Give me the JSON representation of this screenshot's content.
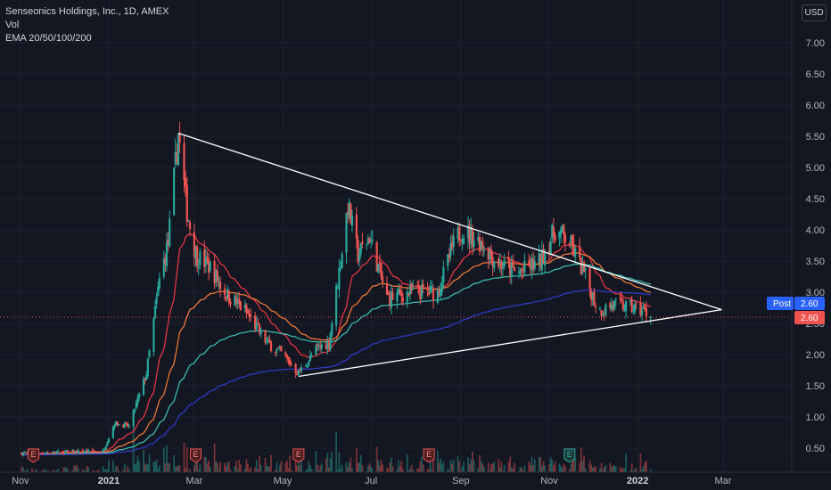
{
  "legend": {
    "symbol_line": "Senseonics Holdings, Inc., 1D, AMEX",
    "volume_label": "Vol",
    "ema_label": "EMA 20/50/100/200"
  },
  "currency": "USD",
  "price_tags": {
    "post_label": "Post",
    "post_value": "2.60",
    "last_value": "2.60"
  },
  "colors": {
    "background": "#131722",
    "up": "#26a69a",
    "down": "#ef5350",
    "ema20": "#f23645",
    "ema50": "#ff7d38",
    "ema100": "#3dc4b8",
    "ema200": "#2e3ccf",
    "trendline": "#ffffff",
    "post_tag": "#2962ff",
    "last_tag": "#ef5350"
  },
  "chart_data": {
    "type": "candlestick",
    "title": "Senseonics Holdings, Inc., 1D, AMEX",
    "ylim": [
      0.25,
      7.2
    ],
    "y_ticks": [
      "7.00",
      "6.50",
      "6.00",
      "5.50",
      "5.00",
      "4.50",
      "4.00",
      "3.50",
      "3.00",
      "2.50",
      "2.00",
      "1.50",
      "1.00",
      "0.50"
    ],
    "x_ticks": [
      {
        "label": "Nov",
        "bold": false
      },
      {
        "label": "2021",
        "bold": true
      },
      {
        "label": "Mar",
        "bold": false
      },
      {
        "label": "May",
        "bold": false
      },
      {
        "label": "Jul",
        "bold": false
      },
      {
        "label": "Sep",
        "bold": false
      },
      {
        "label": "Nov",
        "bold": false
      },
      {
        "label": "2022",
        "bold": true
      },
      {
        "label": "Mar",
        "bold": false
      }
    ],
    "price_anchors": [
      [
        "2020-11-01",
        0.42
      ],
      [
        "2020-12-28",
        0.45
      ],
      [
        "2021-01-05",
        0.9
      ],
      [
        "2021-01-15",
        0.85
      ],
      [
        "2021-01-27",
        1.7
      ],
      [
        "2021-02-05",
        3.2
      ],
      [
        "2021-02-11",
        3.8
      ],
      [
        "2021-02-15",
        4.8
      ],
      [
        "2021-02-18",
        5.55
      ],
      [
        "2021-02-24",
        4.3
      ],
      [
        "2021-03-02",
        3.6
      ],
      [
        "2021-03-12",
        3.4
      ],
      [
        "2021-03-22",
        3.0
      ],
      [
        "2021-04-05",
        2.7
      ],
      [
        "2021-04-20",
        2.2
      ],
      [
        "2021-05-01",
        2.0
      ],
      [
        "2021-05-12",
        1.7
      ],
      [
        "2021-05-25",
        2.1
      ],
      [
        "2021-06-02",
        2.2
      ],
      [
        "2021-06-10",
        3.5
      ],
      [
        "2021-06-15",
        4.4
      ],
      [
        "2021-06-22",
        3.6
      ],
      [
        "2021-06-30",
        3.9
      ],
      [
        "2021-07-12",
        2.9
      ],
      [
        "2021-07-28",
        3.0
      ],
      [
        "2021-08-16",
        3.0
      ],
      [
        "2021-08-26",
        3.7
      ],
      [
        "2021-09-01",
        4.0
      ],
      [
        "2021-09-15",
        3.8
      ],
      [
        "2021-09-25",
        3.5
      ],
      [
        "2021-10-10",
        3.3
      ],
      [
        "2021-10-26",
        3.5
      ],
      [
        "2021-11-05",
        4.0
      ],
      [
        "2021-11-15",
        3.8
      ],
      [
        "2021-11-25",
        3.3
      ],
      [
        "2021-12-05",
        2.7
      ],
      [
        "2021-12-15",
        2.8
      ],
      [
        "2021-12-28",
        2.75
      ],
      [
        "2022-01-05",
        2.7
      ],
      [
        "2022-01-10",
        2.6
      ]
    ],
    "ema": [
      {
        "name": "EMA 20",
        "period": 20,
        "color_key": "ema20"
      },
      {
        "name": "EMA 50",
        "period": 50,
        "color_key": "ema50"
      },
      {
        "name": "EMA 100",
        "period": 100,
        "color_key": "ema100"
      },
      {
        "name": "EMA 200",
        "period": 200,
        "color_key": "ema200"
      }
    ],
    "trendlines": [
      {
        "name": "upper-trendline",
        "from": [
          "2021-02-18",
          5.55
        ],
        "to": [
          "2022-02-28",
          2.72
        ]
      },
      {
        "name": "lower-trendline",
        "from": [
          "2021-05-12",
          1.65
        ],
        "to": [
          "2022-02-28",
          2.72
        ]
      }
    ],
    "earnings": [
      {
        "label": "E",
        "date": "2020-11-10"
      },
      {
        "label": "E",
        "date": "2021-03-02"
      },
      {
        "label": "E",
        "date": "2021-05-12"
      },
      {
        "label": "E",
        "date": "2021-08-10"
      },
      {
        "label": "E",
        "date": "2021-11-15",
        "future": true
      }
    ],
    "last_price": 2.6
  }
}
